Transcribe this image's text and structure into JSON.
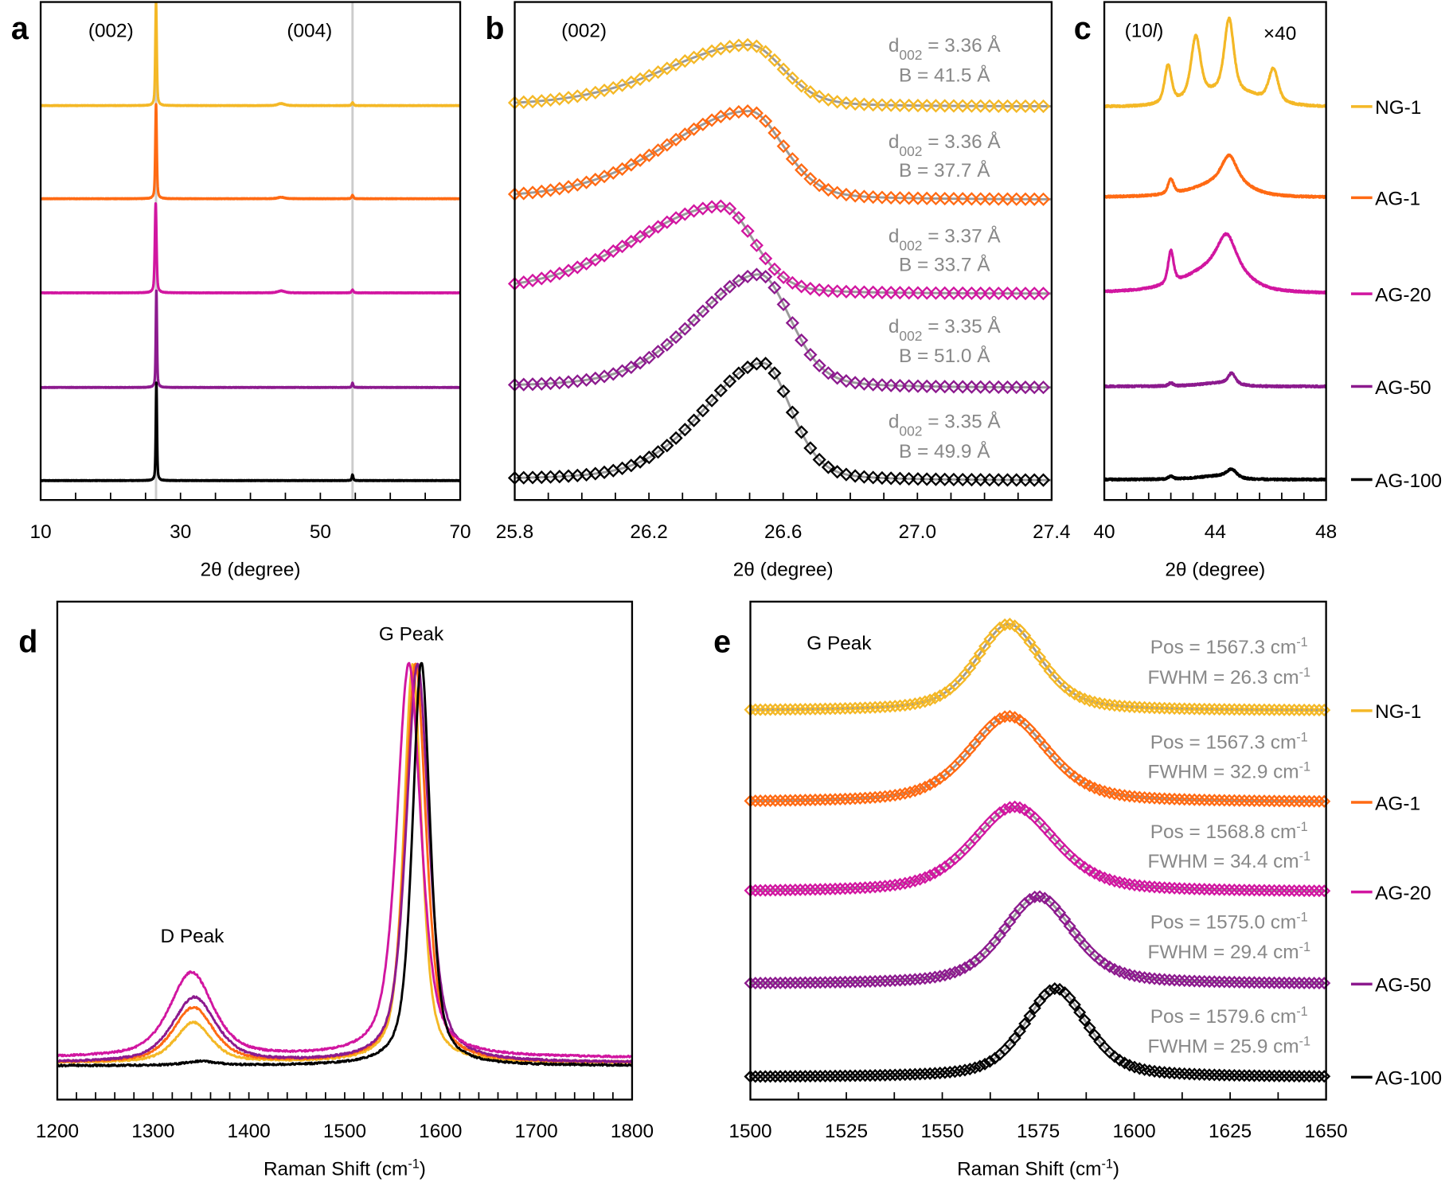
{
  "colors": {
    "NG-1": "#F4B826",
    "AG-1": "#FF6A13",
    "AG-20": "#D116A0",
    "AG-50": "#8C1A8E",
    "AG-100": "#000000",
    "fit": "#9a9a9a",
    "annotation": "#888888",
    "reference_line": "#cccccc"
  },
  "chart_data": [
    {
      "panel": "a",
      "type": "line",
      "xlabel": "2θ (degree)",
      "xlim": [
        10,
        70
      ],
      "ylim": [
        0,
        100
      ],
      "xticks": [
        "10",
        "30",
        "50",
        "70"
      ],
      "xtick_values": [
        10,
        30,
        50,
        70
      ],
      "minor_step": 5,
      "annotations": [
        "(002)",
        "(004)"
      ],
      "reference_lines_x": [
        26.5,
        54.6
      ],
      "series": [
        {
          "name": "NG-1",
          "offset": 79.2,
          "peaks": [
            {
              "pos": 26.5,
              "amp": 20.8,
              "hwhm": 0.12
            },
            {
              "pos": 44.4,
              "amp": 0.4,
              "hwhm": 0.6
            },
            {
              "pos": 54.6,
              "amp": 0.6,
              "hwhm": 0.15
            }
          ]
        },
        {
          "name": "AG-1",
          "offset": 60.5,
          "peaks": [
            {
              "pos": 26.5,
              "amp": 19,
              "hwhm": 0.12
            },
            {
              "pos": 44.4,
              "amp": 0.3,
              "hwhm": 0.6
            },
            {
              "pos": 54.6,
              "amp": 0.7,
              "hwhm": 0.15
            }
          ]
        },
        {
          "name": "AG-20",
          "offset": 41.6,
          "peaks": [
            {
              "pos": 26.45,
              "amp": 18,
              "hwhm": 0.14
            },
            {
              "pos": 44.4,
              "amp": 0.4,
              "hwhm": 0.6
            },
            {
              "pos": 54.6,
              "amp": 0.6,
              "hwhm": 0.15
            }
          ]
        },
        {
          "name": "AG-50",
          "offset": 22.6,
          "peaks": [
            {
              "pos": 26.55,
              "amp": 19.6,
              "hwhm": 0.1
            },
            {
              "pos": 54.6,
              "amp": 0.9,
              "hwhm": 0.12
            }
          ]
        },
        {
          "name": "AG-100",
          "offset": 3.9,
          "peaks": [
            {
              "pos": 26.55,
              "amp": 19.8,
              "hwhm": 0.1
            },
            {
              "pos": 54.6,
              "amp": 1.2,
              "hwhm": 0.12
            }
          ]
        }
      ]
    },
    {
      "panel": "b",
      "type": "scatter",
      "xlabel": "2θ (degree)",
      "xlim": [
        25.8,
        27.4
      ],
      "ylim": [
        0,
        100
      ],
      "xticks": [
        "25.8",
        "26.2",
        "26.6",
        "27.0",
        "27.4"
      ],
      "xtick_values": [
        25.8,
        26.2,
        26.6,
        27.0,
        27.4
      ],
      "minor_step": 0.1,
      "annotations": [
        "(002)"
      ],
      "series": [
        {
          "name": "NG-1",
          "offset": 79.0,
          "peaks": [
            {
              "pos": 26.5,
              "amp": 12.4,
              "hwhm_left": 0.3,
              "hwhm_right": 0.12,
              "eta": 0.3
            }
          ],
          "d002": "3.36 Å",
          "B": "B = 41.5 Å"
        },
        {
          "name": "AG-1",
          "offset": 60.3,
          "peaks": [
            {
              "pos": 26.5,
              "amp": 17.8,
              "hwhm_left": 0.3,
              "hwhm_right": 0.12,
              "eta": 0.3
            }
          ],
          "d002": "3.36 Å",
          "B": "B = 37.7 Å"
        },
        {
          "name": "AG-20",
          "offset": 41.4,
          "peaks": [
            {
              "pos": 26.42,
              "amp": 17.6,
              "hwhm_left": 0.32,
              "hwhm_right": 0.11,
              "eta": 0.3
            }
          ],
          "d002": "3.37 Å",
          "B": "B = 33.7 Å"
        },
        {
          "name": "AG-50",
          "offset": 22.5,
          "peaks": [
            {
              "pos": 26.53,
              "amp": 22.8,
              "hwhm_left": 0.23,
              "hwhm_right": 0.11,
              "eta": 0.3
            }
          ],
          "d002": "3.35 Å",
          "B": "B = 51.0 Å"
        },
        {
          "name": "AG-100",
          "offset": 3.9,
          "peaks": [
            {
              "pos": 26.54,
              "amp": 23.6,
              "hwhm_left": 0.21,
              "hwhm_right": 0.1,
              "eta": 0.3
            }
          ],
          "d002": "3.35 Å",
          "B": "B = 49.9 Å"
        }
      ],
      "d_label": {
        "main": "d",
        "sub": "002",
        "eq": " = "
      }
    },
    {
      "panel": "c",
      "type": "line",
      "xlabel": "2θ (degree)",
      "xlim": [
        40,
        48
      ],
      "ylim": [
        0,
        100
      ],
      "xticks": [
        "40",
        "44",
        "48"
      ],
      "xtick_values": [
        40,
        44,
        48
      ],
      "minor_step": 0.8,
      "annotation_parts": {
        "pre": "(10",
        "italic": "l",
        "post": ")"
      },
      "multiplier": "×40",
      "legend": "right",
      "series": [
        {
          "name": "NG-1",
          "offset": 79.0,
          "peaks": [
            {
              "pos": 44.4,
              "amp": 3,
              "hwhm_left": 1.4,
              "hwhm_right": 1.4,
              "eta": 0
            },
            {
              "pos": 42.3,
              "amp": 7.5,
              "hwhm": 0.15
            },
            {
              "pos": 43.3,
              "amp": 12,
              "hwhm": 0.2
            },
            {
              "pos": 44.5,
              "amp": 14.5,
              "hwhm": 0.2
            },
            {
              "pos": 46.1,
              "amp": 6.5,
              "hwhm": 0.2
            }
          ]
        },
        {
          "name": "AG-1",
          "offset": 60.7,
          "peaks": [
            {
              "pos": 44.5,
              "amp": 4,
              "hwhm_left": 1.2,
              "hwhm_right": 0.8,
              "eta": 0.7
            },
            {
              "pos": 42.4,
              "amp": 3,
              "hwhm": 0.12
            },
            {
              "pos": 44.5,
              "amp": 4.5,
              "hwhm": 0.3
            }
          ]
        },
        {
          "name": "AG-20",
          "offset": 41.4,
          "peaks": [
            {
              "pos": 44.4,
              "amp": 7,
              "hwhm_left": 1.4,
              "hwhm_right": 0.8,
              "eta": 0.7
            },
            {
              "pos": 42.4,
              "amp": 6.5,
              "hwhm": 0.12
            },
            {
              "pos": 44.4,
              "amp": 5,
              "hwhm": 0.35
            }
          ]
        },
        {
          "name": "AG-50",
          "offset": 22.8,
          "peaks": [
            {
              "pos": 44.4,
              "amp": 0.8,
              "hwhm_left": 1,
              "hwhm_right": 0.5
            },
            {
              "pos": 42.4,
              "amp": 0.6,
              "hwhm": 0.1
            },
            {
              "pos": 44.6,
              "amp": 2,
              "hwhm": 0.15
            }
          ]
        },
        {
          "name": "AG-100",
          "offset": 4.1,
          "peaks": [
            {
              "pos": 44.3,
              "amp": 0.8,
              "hwhm_left": 1,
              "hwhm_right": 0.5
            },
            {
              "pos": 42.4,
              "amp": 0.6,
              "hwhm": 0.1
            },
            {
              "pos": 44.6,
              "amp": 1.5,
              "hwhm": 0.2
            }
          ]
        }
      ]
    },
    {
      "panel": "d",
      "type": "line",
      "xlabel_parts": {
        "pre": "Raman Shift (cm",
        "sup": "-1",
        "post": ")"
      },
      "xlim": [
        1200,
        1800
      ],
      "ylim": [
        0,
        100
      ],
      "xticks": [
        "1200",
        "1300",
        "1400",
        "1500",
        "1600",
        "1700",
        "1800"
      ],
      "xtick_values": [
        1200,
        1300,
        1400,
        1500,
        1600,
        1700,
        1800
      ],
      "minor_step": 20,
      "annotations": [
        "D Peak",
        "G Peak"
      ],
      "series": [
        {
          "name": "NG-1",
          "offset": 7.4,
          "peaks": [
            {
              "pos": 1342,
              "amp": 8,
              "hwhm": 22,
              "eta": 0.6
            },
            {
              "pos": 1571,
              "amp": 80,
              "hwhm": 11,
              "eta": 0.6
            }
          ]
        },
        {
          "name": "AG-1",
          "offset": 7.4,
          "peaks": [
            {
              "pos": 1342,
              "amp": 11,
              "hwhm": 25,
              "eta": 0.6
            },
            {
              "pos": 1574,
              "amp": 80,
              "hwhm": 13,
              "eta": 0.6
            }
          ]
        },
        {
          "name": "AG-50",
          "offset": 7.4,
          "peaks": [
            {
              "pos": 1343,
              "amp": 13,
              "hwhm": 27,
              "eta": 0.6
            },
            {
              "pos": 1576,
              "amp": 80,
              "hwhm": 14,
              "eta": 0.6
            }
          ]
        },
        {
          "name": "AG-20",
          "offset": 8.4,
          "peaks": [
            {
              "pos": 1340,
              "amp": 17,
              "hwhm": 27,
              "eta": 0.6
            },
            {
              "pos": 1567,
              "amp": 79,
              "hwhm": 15,
              "eta": 0.6
            }
          ]
        },
        {
          "name": "AG-100",
          "offset": 6.8,
          "peaks": [
            {
              "pos": 1350,
              "amp": 0.8,
              "hwhm": 20,
              "eta": 0.6
            },
            {
              "pos": 1580,
              "amp": 81,
              "hwhm": 11,
              "eta": 0.6
            }
          ]
        }
      ]
    },
    {
      "panel": "e",
      "type": "scatter",
      "xlabel_parts": {
        "pre": "Raman Shift (cm",
        "sup": "-1",
        "post": ")"
      },
      "xlim": [
        1500,
        1650
      ],
      "ylim": [
        0,
        100
      ],
      "xticks": [
        "1500",
        "1525",
        "1550",
        "1575",
        "1600",
        "1625",
        "1650"
      ],
      "xtick_values": [
        1500,
        1525,
        1550,
        1575,
        1600,
        1625,
        1650
      ],
      "minor_step": 12.5,
      "annotations": [
        "G Peak"
      ],
      "legend": "right",
      "unit_parts": {
        "unit": " cm",
        "sup": "-1"
      },
      "series": [
        {
          "name": "NG-1",
          "offset": 78.1,
          "peaks": [
            {
              "pos": 1567.3,
              "amp": 17.4,
              "hwhm": 10,
              "eta": 0.5
            }
          ],
          "pos_label": "Pos = 1567.3",
          "fwhm_label": "FWHM = 26.3"
        },
        {
          "name": "AG-1",
          "offset": 59.7,
          "peaks": [
            {
              "pos": 1567.3,
              "amp": 17.3,
              "hwhm": 12.3,
              "eta": 0.5
            }
          ],
          "pos_label": "Pos = 1567.3",
          "fwhm_label": "FWHM = 32.9"
        },
        {
          "name": "AG-20",
          "offset": 41.7,
          "peaks": [
            {
              "pos": 1568.8,
              "amp": 17.1,
              "hwhm": 12.9,
              "eta": 0.5
            }
          ],
          "pos_label": "Pos = 1568.8",
          "fwhm_label": "FWHM = 34.4"
        },
        {
          "name": "AG-50",
          "offset": 23.2,
          "peaks": [
            {
              "pos": 1575.0,
              "amp": 17.6,
              "hwhm": 11,
              "eta": 0.5
            }
          ],
          "pos_label": "Pos = 1575.0",
          "fwhm_label": "FWHM = 29.4"
        },
        {
          "name": "AG-100",
          "offset": 4.5,
          "peaks": [
            {
              "pos": 1579.6,
              "amp": 17.8,
              "hwhm": 9.7,
              "eta": 0.5
            }
          ],
          "pos_label": "Pos = 1579.6",
          "fwhm_label": "FWHM = 25.9"
        }
      ]
    }
  ]
}
